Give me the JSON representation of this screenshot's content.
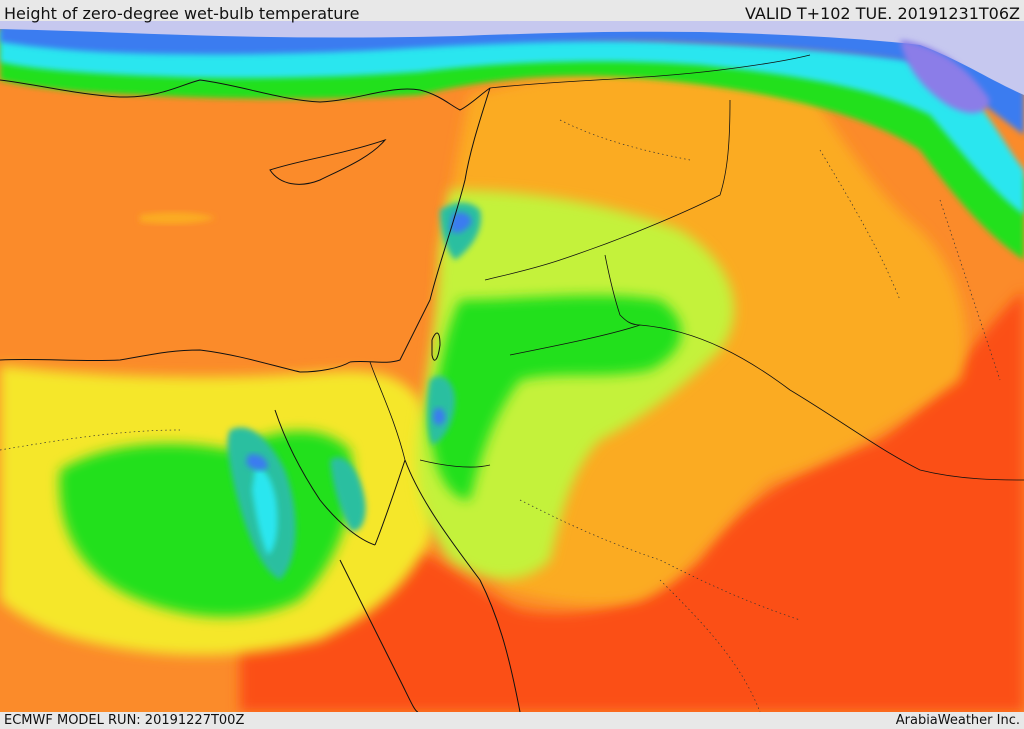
{
  "header": {
    "title": "Height of zero-degree wet-bulb temperature",
    "valid": "VALID T+102 TUE. 20191231T06Z"
  },
  "footer": {
    "model_run": "ECMWF MODEL RUN: 20191227T00Z",
    "credit": "ArabiaWeather Inc."
  },
  "map": {
    "colors": {
      "red_orange": "#fb4f14",
      "orange": "#fb8b2a",
      "light_orange": "#fbab20",
      "yellow": "#f5e72a",
      "yellow_green": "#c4f23a",
      "light_green": "#8ff234",
      "green": "#22e01e",
      "teal": "#2cbfa0",
      "cyan": "#29e6ef",
      "blue": "#3b7cf0",
      "purple": "#8b7de8",
      "lavender": "#c6c8ef",
      "border": "#111111"
    }
  }
}
